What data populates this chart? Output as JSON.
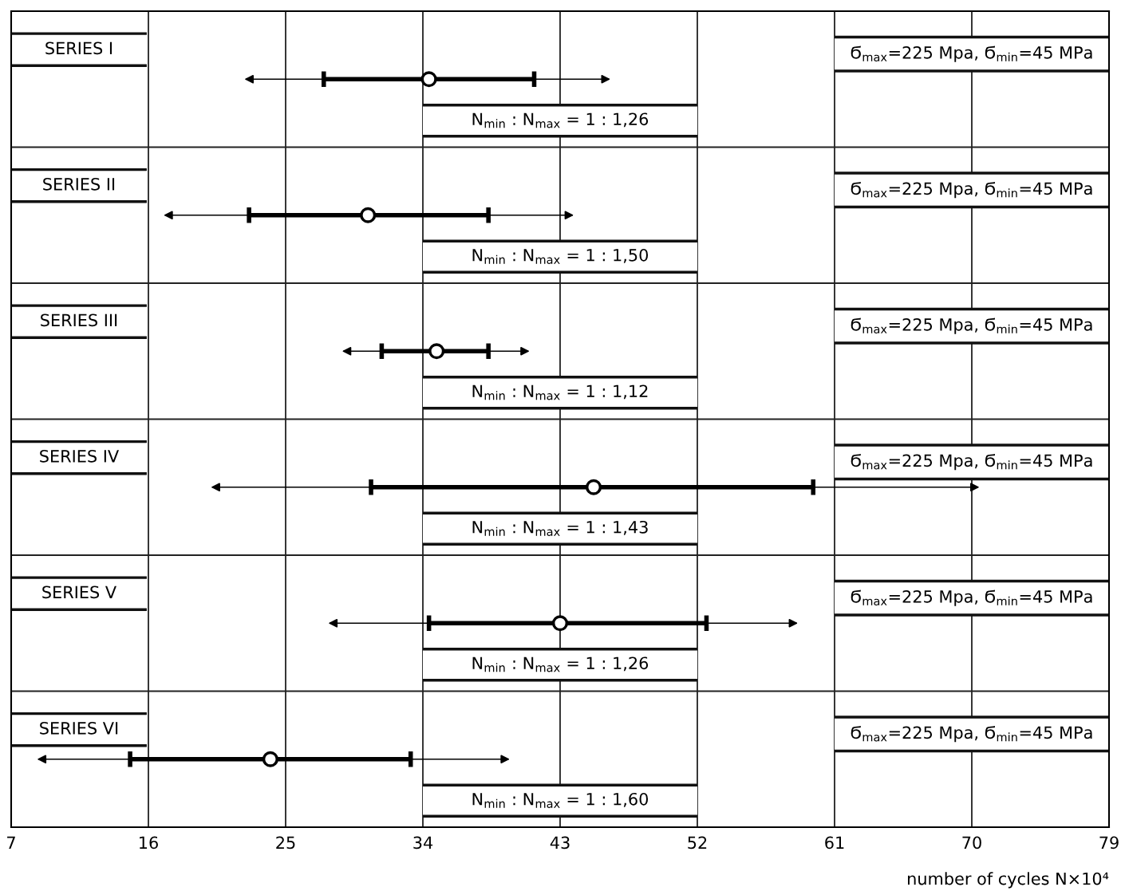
{
  "chart_data": {
    "type": "scatter",
    "orientation": "horizontal",
    "categories": [
      null,
      null,
      null,
      null,
      null,
      null
    ],
    "xlabel": "number of cycles N×10⁴",
    "xlim": [
      7,
      79
    ],
    "xticks": [
      7,
      16,
      25,
      34,
      43,
      52,
      61,
      70,
      79
    ],
    "grid": "x",
    "marker": "circle",
    "series": [
      {
        "color": "#000000",
        "values": [
          34.4,
          30.4,
          34.9,
          45.2,
          43,
          24.0
        ],
        "errors": [
          [
            27.5,
            41.3
          ],
          [
            22.6,
            38.3
          ],
          [
            31.3,
            38.3
          ],
          [
            30.6,
            59.6
          ],
          [
            34.4,
            52.6
          ],
          [
            14.8,
            33.2
          ]
        ],
        "lower": [
          22.3,
          17.0,
          28.7,
          20.1,
          27.8,
          8.7
        ],
        "upper": [
          46.3,
          43.9,
          41.0,
          70.5,
          58.6,
          39.7
        ]
      }
    ],
    "annotations": [
      "SERIES I",
      "Ϭ$_{max}$=225 Mpa, Ϭ$_{min}$=45 MPa",
      "N$_{min}$ : N$_{max}$ = 1 : 1,26",
      "SERIES II",
      "Ϭ$_{max}$=225 Mpa, Ϭ$_{min}$=45 MPa",
      "N$_{min}$ : N$_{max}$ = 1 : 1,50",
      "SERIES III",
      "Ϭ$_{max}$=225 Mpa, Ϭ$_{min}$=45 MPa",
      "N$_{min}$ : N$_{max}$ = 1 : 1,12",
      "SERIES IV",
      "Ϭ$_{max}$=225 Mpa, Ϭ$_{min}$=45 MPa",
      "N$_{min}$ : N$_{max}$ = 1 : 1,43",
      "SERIES V",
      "Ϭ$_{max}$=225 Mpa, Ϭ$_{min}$=45 MPa",
      "N$_{min}$ : N$_{max}$ = 1 : 1,26",
      "SERIES VI",
      "Ϭ$_{max}$=225 Mpa, Ϭ$_{min}$=45 MPa",
      "N$_{min}$ : N$_{max}$ = 1 : 1,60"
    ]
  }
}
